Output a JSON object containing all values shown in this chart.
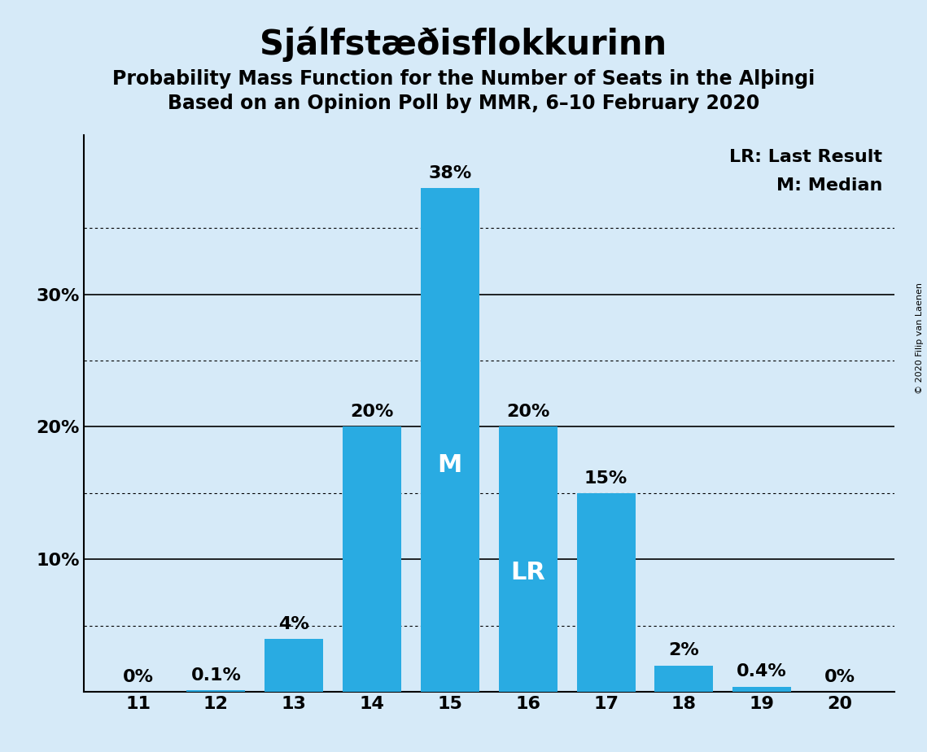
{
  "title": "Sjálfstæðisflokkurinn",
  "subtitle1": "Probability Mass Function for the Number of Seats in the Alþingi",
  "subtitle2": "Based on an Opinion Poll by MMR, 6–10 February 2020",
  "copyright": "© 2020 Filip van Laenen",
  "seats": [
    11,
    12,
    13,
    14,
    15,
    16,
    17,
    18,
    19,
    20
  ],
  "probabilities": [
    0.0,
    0.1,
    4.0,
    20.0,
    38.0,
    20.0,
    15.0,
    2.0,
    0.4,
    0.0
  ],
  "bar_color": "#29ABE2",
  "background_color": "#D6EAF8",
  "median_seat": 15,
  "lr_seat": 16,
  "label_lr": "LR",
  "label_median": "M",
  "legend_lr": "LR: Last Result",
  "legend_m": "M: Median",
  "ytick_solid": [
    10,
    20,
    30
  ],
  "ytick_dotted": [
    5,
    15,
    25,
    35
  ],
  "ytick_labels_pos": [
    10,
    20,
    30
  ],
  "ytick_label_texts": [
    "10%",
    "20%",
    "30%"
  ],
  "ylim": [
    0,
    42
  ],
  "bar_width": 0.75,
  "title_fontsize": 30,
  "subtitle_fontsize": 17,
  "tick_fontsize": 16,
  "legend_fontsize": 16,
  "annotation_fontsize": 16,
  "inline_fontsize": 22
}
